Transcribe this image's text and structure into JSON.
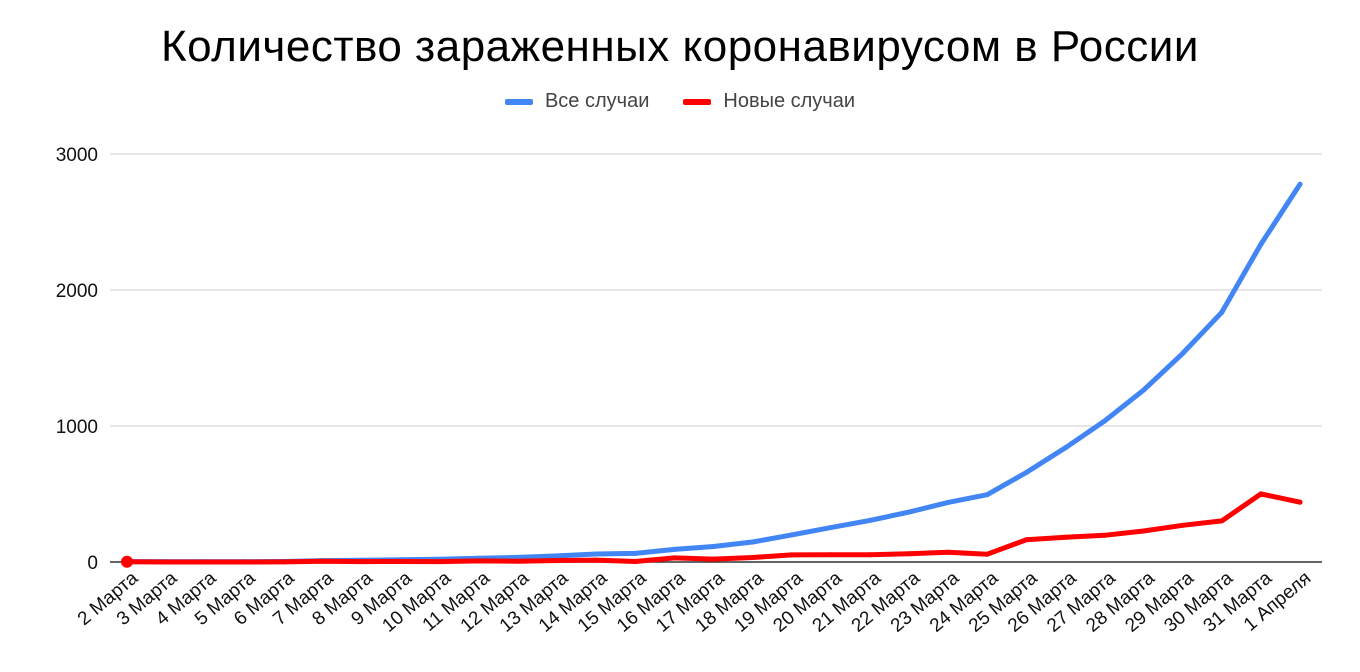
{
  "chart_data": {
    "type": "line",
    "title": "Количество зараженных коронавирусом в России",
    "xlabel": "",
    "ylabel": "",
    "ylim": [
      0,
      3000
    ],
    "y_ticks": [
      0,
      1000,
      2000,
      3000
    ],
    "grid": true,
    "legend_position": "top-center",
    "categories": [
      "2 Марта",
      "3 Марта",
      "4 Марта",
      "5 Марта",
      "6 Марта",
      "7 Марта",
      "8 Марта",
      "9 Марта",
      "10 Марта",
      "11 Марта",
      "12 Марта",
      "13 Марта",
      "14 Марта",
      "15 Марта",
      "16 Марта",
      "17 Марта",
      "18 Марта",
      "19 Марта",
      "20 Марта",
      "21 Марта",
      "22 Марта",
      "23 Марта",
      "24 Марта",
      "25 Марта",
      "26 Марта",
      "27 Марта",
      "28 Марта",
      "29 Марта",
      "30 Марта",
      "31 Марта",
      "1 Апреля"
    ],
    "series": [
      {
        "name": "Все случаи",
        "color": "#4285f4",
        "values": [
          3,
          3,
          3,
          3,
          4,
          10,
          13,
          17,
          20,
          28,
          34,
          45,
          59,
          63,
          93,
          114,
          147,
          199,
          253,
          306,
          367,
          438,
          495,
          658,
          840,
          1036,
          1264,
          1534,
          1836,
          2337,
          2777
        ]
      },
      {
        "name": "Новые случаи",
        "color": "#ff0000",
        "values": [
          2,
          0,
          0,
          0,
          1,
          6,
          3,
          4,
          3,
          8,
          6,
          11,
          14,
          4,
          30,
          21,
          33,
          52,
          54,
          53,
          61,
          71,
          57,
          163,
          182,
          196,
          228,
          270,
          302,
          501,
          440
        ]
      }
    ]
  }
}
